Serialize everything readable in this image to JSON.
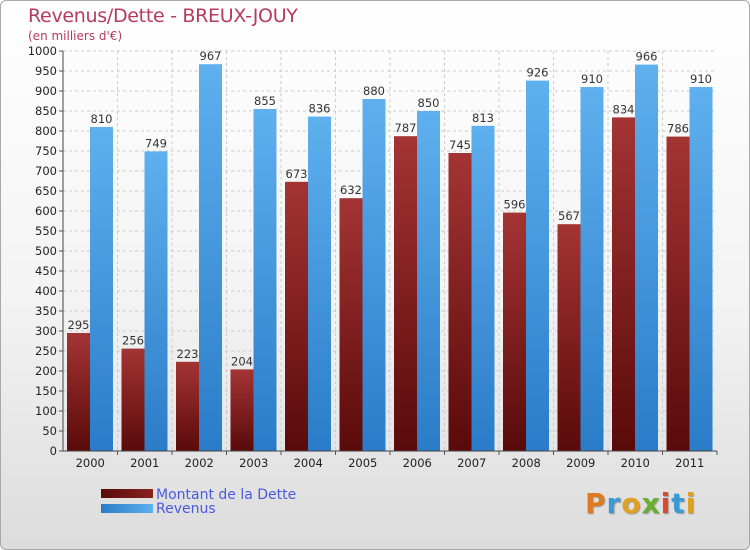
{
  "title": "Revenus/Dette - BREUX-JOUY",
  "subtitle": "(en milliers d'€)",
  "logo": "Proxiti",
  "colors": {
    "dette_dark": "#5a0a0a",
    "dette_light": "#a43434",
    "revenus_dark": "#2a7cc8",
    "revenus_light": "#5fb0ee",
    "title": "#b53a5e",
    "legend_text": "#4a5ae0"
  },
  "chart_data": {
    "type": "bar",
    "title": "Revenus/Dette - BREUX-JOUY",
    "subtitle": "(en milliers d'€)",
    "xlabel": "",
    "ylabel": "",
    "categories": [
      "2000",
      "2001",
      "2002",
      "2003",
      "2004",
      "2005",
      "2006",
      "2007",
      "2008",
      "2009",
      "2010",
      "2011"
    ],
    "series": [
      {
        "name": "Montant de la Dette",
        "values": [
          295,
          256,
          223,
          204,
          673,
          632,
          787,
          745,
          596,
          567,
          834,
          786
        ]
      },
      {
        "name": "Revenus",
        "values": [
          810,
          749,
          967,
          855,
          836,
          880,
          850,
          813,
          926,
          910,
          966,
          910
        ]
      }
    ],
    "ylim": [
      0,
      1000
    ],
    "yticks": [
      0,
      50,
      100,
      150,
      200,
      250,
      300,
      350,
      400,
      450,
      500,
      550,
      600,
      650,
      700,
      750,
      800,
      850,
      900,
      950,
      1000
    ],
    "grid": true,
    "legend_position": "bottom-left"
  }
}
